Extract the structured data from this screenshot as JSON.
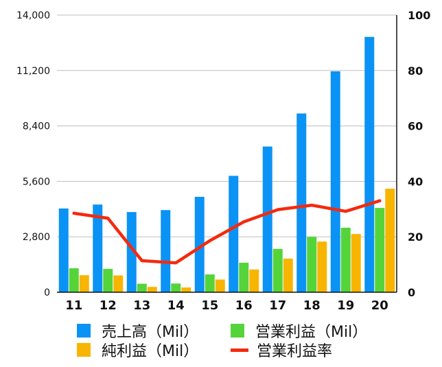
{
  "colors": {
    "sales": "#0a93f5",
    "operating_profit": "#55d43a",
    "net_profit": "#f8b500",
    "operating_margin": "#f42a0f",
    "grid": "#bdbdbd",
    "axis": "#111111"
  },
  "legend": {
    "sales": "売上高（Mil）",
    "operating_profit": "営業利益（Mil）",
    "net_profit": "純利益（Mil）",
    "operating_margin": "営業利益率"
  },
  "chart_data": {
    "type": "bar",
    "categories": [
      "11",
      "12",
      "13",
      "14",
      "15",
      "16",
      "17",
      "18",
      "19",
      "20"
    ],
    "series": [
      {
        "name": "売上高（Mil）",
        "kind": "bar",
        "axis": "left",
        "color_key": "sales",
        "values": [
          4230,
          4430,
          4050,
          4150,
          4820,
          5880,
          7360,
          9030,
          11160,
          12900
        ]
      },
      {
        "name": "営業利益（Mil）",
        "kind": "bar",
        "axis": "left",
        "color_key": "operating_profit",
        "values": [
          1210,
          1180,
          430,
          440,
          900,
          1490,
          2190,
          2800,
          3260,
          4260
        ]
      },
      {
        "name": "純利益（Mil）",
        "kind": "bar",
        "axis": "left",
        "color_key": "net_profit",
        "values": [
          860,
          850,
          270,
          240,
          640,
          1150,
          1700,
          2560,
          2940,
          5230
        ]
      },
      {
        "name": "営業利益率",
        "kind": "line",
        "axis": "right",
        "color_key": "operating_margin",
        "values": [
          28.5,
          26.7,
          11.4,
          10.6,
          18.6,
          25.4,
          29.8,
          31.4,
          29.2,
          33.0
        ]
      }
    ],
    "y_left": {
      "lim": [
        0,
        14000
      ],
      "ticks": [
        "0",
        "2,800",
        "5,600",
        "8,400",
        "11,200",
        "14,000"
      ]
    },
    "y_right": {
      "lim": [
        0,
        100
      ],
      "ticks": [
        "0",
        "20",
        "40",
        "60",
        "80",
        "100"
      ]
    },
    "grid": true,
    "legend_position": "bottom"
  }
}
